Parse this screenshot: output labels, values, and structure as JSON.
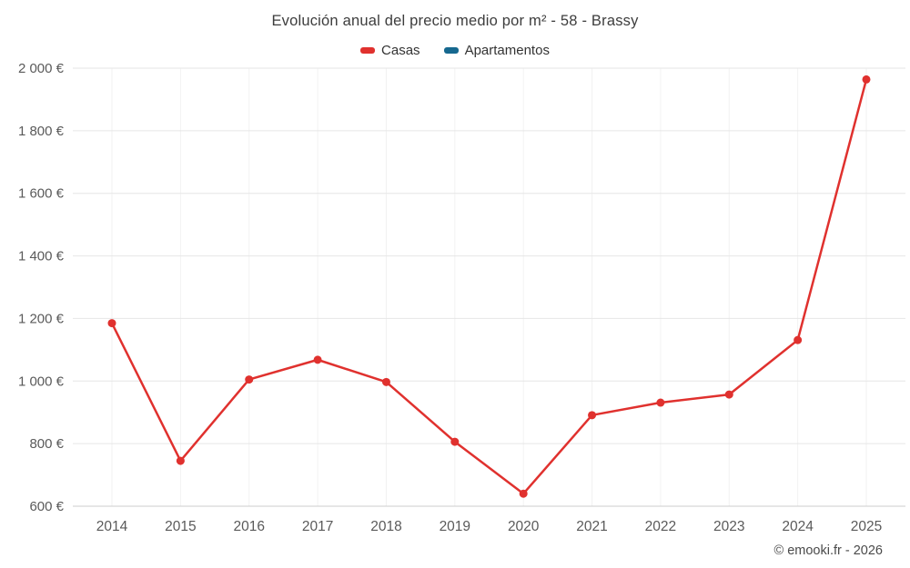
{
  "header": {
    "title": "Evolución anual del precio medio por m² - 58 - Brassy"
  },
  "legend": {
    "items": [
      {
        "label": "Casas",
        "color": "#e0312e"
      },
      {
        "label": "Apartamentos",
        "color": "#16688f"
      }
    ]
  },
  "footer": {
    "credit": "© emooki.fr - 2026"
  },
  "chart_data": {
    "type": "line",
    "title": "Evolución anual del precio medio por m² - 58 - Brassy",
    "categories": [
      "2014",
      "2015",
      "2016",
      "2017",
      "2018",
      "2019",
      "2020",
      "2021",
      "2022",
      "2023",
      "2024",
      "2025"
    ],
    "series": [
      {
        "name": "Casas",
        "color": "#e0312e",
        "values": [
          1185,
          745,
          1005,
          1068,
          997,
          806,
          640,
          891,
          931,
          957,
          1131,
          1964
        ]
      },
      {
        "name": "Apartamentos",
        "color": "#16688f",
        "values": []
      }
    ],
    "ylim": [
      600,
      2000
    ],
    "ytick_step": 200,
    "y_suffix": " €",
    "grid": true,
    "legend_position": "top",
    "colors": {
      "grid_line": "#e6e6e6",
      "grid_line_vertical": "#f2f2f2",
      "axis_line": "#cccccc",
      "tick_label": "#5a5a5a"
    }
  }
}
